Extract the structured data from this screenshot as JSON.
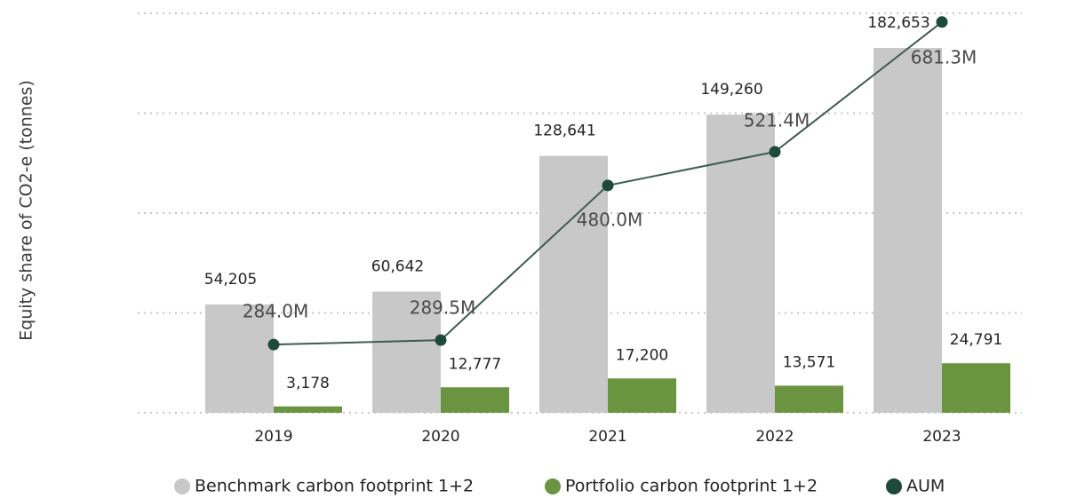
{
  "chart_data": {
    "type": "bar-line",
    "y_axis_title": "Equity share of CO2-e (tonnes)",
    "categories": [
      "2019",
      "2020",
      "2021",
      "2022",
      "2023"
    ],
    "ylim": [
      0,
      200000
    ],
    "yticks": [
      0,
      50000,
      100000,
      150000,
      200000
    ],
    "grid": true,
    "y2lim": [
      200,
      692
    ],
    "series": [
      {
        "name": "Benchmark carbon footprint 1+2",
        "color": "#c8c8c8",
        "type": "bar",
        "values": [
          54205,
          60642,
          128641,
          149260,
          182653
        ],
        "value_labels": [
          "54,205",
          "60,642",
          "128,641",
          "149,260",
          "182,653"
        ]
      },
      {
        "name": "Portfolio carbon footprint 1+2",
        "color": "#6a9440",
        "type": "bar",
        "values": [
          3178,
          12777,
          17200,
          13571,
          24791
        ],
        "value_labels": [
          "3,178",
          "12,777",
          "17,200",
          "13,571",
          "24,791"
        ]
      },
      {
        "name": "AUM",
        "color": "#1d4a3a",
        "type": "line",
        "axis": "y2",
        "values": [
          284.0,
          289.5,
          480.0,
          521.4,
          681.3
        ],
        "value_labels": [
          "284.0M",
          "289.5M",
          "480.0M",
          "521.4M",
          "681.3M"
        ]
      }
    ],
    "legend": "bottom"
  }
}
